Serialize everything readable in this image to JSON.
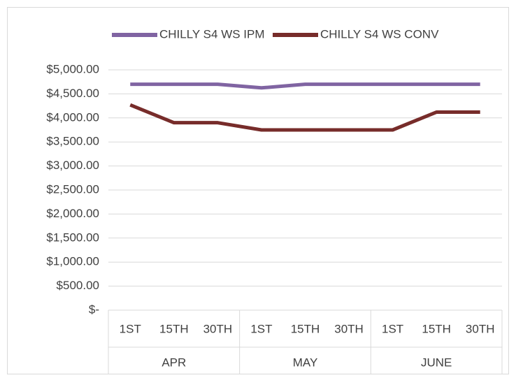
{
  "chart_data": {
    "type": "line",
    "categories": [
      "1ST",
      "15TH",
      "30TH",
      "1ST",
      "15TH",
      "30TH",
      "1ST",
      "15TH",
      "30TH"
    ],
    "groups": [
      "APR",
      "MAY",
      "JUNE"
    ],
    "series": [
      {
        "name": "CHILLY S4 WS IPM",
        "color": "#8064a2",
        "values": [
          4700,
          4700,
          4700,
          4625,
          4700,
          4700,
          4700,
          4700,
          4700
        ]
      },
      {
        "name": "CHILLY S4 WS CONV",
        "color": "#772c2a",
        "values": [
          4270,
          3900,
          3900,
          3750,
          3750,
          3750,
          3750,
          4120,
          4120
        ]
      }
    ],
    "ylim": [
      0,
      5000
    ],
    "yticks": [
      {
        "value": 0,
        "label": "$-"
      },
      {
        "value": 500,
        "label": "$500.00"
      },
      {
        "value": 1000,
        "label": "$1,000.00"
      },
      {
        "value": 1500,
        "label": "$1,500.00"
      },
      {
        "value": 2000,
        "label": "$2,000.00"
      },
      {
        "value": 2500,
        "label": "$2,500.00"
      },
      {
        "value": 3000,
        "label": "$3,000.00"
      },
      {
        "value": 3500,
        "label": "$3,500.00"
      },
      {
        "value": 4000,
        "label": "$4,000.00"
      },
      {
        "value": 4500,
        "label": "$4,500.00"
      },
      {
        "value": 5000,
        "label": "$5,000.00"
      }
    ],
    "grid": true,
    "legend": "top"
  }
}
